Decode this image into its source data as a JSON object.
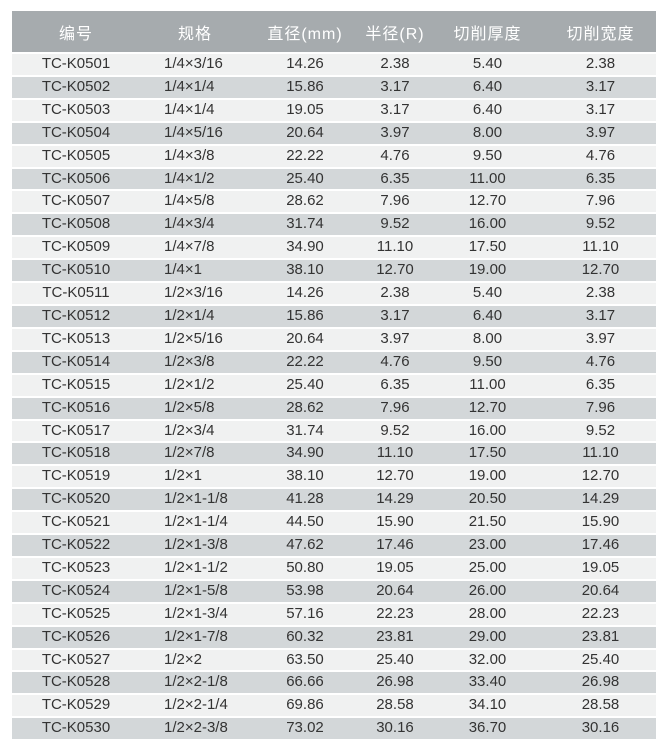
{
  "table": {
    "columns": [
      {
        "id": "code",
        "label": "编号"
      },
      {
        "id": "spec",
        "label": "规格"
      },
      {
        "id": "diameter",
        "label": "直径(mm)"
      },
      {
        "id": "radius",
        "label": "半径(R)"
      },
      {
        "id": "thickness",
        "label": "切削厚度"
      },
      {
        "id": "width",
        "label": "切削宽度"
      }
    ],
    "rows": [
      [
        "TC-K0501",
        "1/4×3/16",
        "14.26",
        "2.38",
        "5.40",
        "2.38"
      ],
      [
        "TC-K0502",
        "1/4×1/4",
        "15.86",
        "3.17",
        "6.40",
        "3.17"
      ],
      [
        "TC-K0503",
        "1/4×1/4",
        "19.05",
        "3.17",
        "6.40",
        "3.17"
      ],
      [
        "TC-K0504",
        "1/4×5/16",
        "20.64",
        "3.97",
        "8.00",
        "3.97"
      ],
      [
        "TC-K0505",
        "1/4×3/8",
        "22.22",
        "4.76",
        "9.50",
        "4.76"
      ],
      [
        "TC-K0506",
        "1/4×1/2",
        "25.40",
        "6.35",
        "11.00",
        "6.35"
      ],
      [
        "TC-K0507",
        "1/4×5/8",
        "28.62",
        "7.96",
        "12.70",
        "7.96"
      ],
      [
        "TC-K0508",
        "1/4×3/4",
        "31.74",
        "9.52",
        "16.00",
        "9.52"
      ],
      [
        "TC-K0509",
        "1/4×7/8",
        "34.90",
        "11.10",
        "17.50",
        "11.10"
      ],
      [
        "TC-K0510",
        "1/4×1",
        "38.10",
        "12.70",
        "19.00",
        "12.70"
      ],
      [
        "TC-K0511",
        "1/2×3/16",
        "14.26",
        "2.38",
        "5.40",
        "2.38"
      ],
      [
        "TC-K0512",
        "1/2×1/4",
        "15.86",
        "3.17",
        "6.40",
        "3.17"
      ],
      [
        "TC-K0513",
        "1/2×5/16",
        "20.64",
        "3.97",
        "8.00",
        "3.97"
      ],
      [
        "TC-K0514",
        "1/2×3/8",
        "22.22",
        "4.76",
        "9.50",
        "4.76"
      ],
      [
        "TC-K0515",
        "1/2×1/2",
        "25.40",
        "6.35",
        "11.00",
        "6.35"
      ],
      [
        "TC-K0516",
        "1/2×5/8",
        "28.62",
        "7.96",
        "12.70",
        "7.96"
      ],
      [
        "TC-K0517",
        "1/2×3/4",
        "31.74",
        "9.52",
        "16.00",
        "9.52"
      ],
      [
        "TC-K0518",
        "1/2×7/8",
        "34.90",
        "11.10",
        "17.50",
        "11.10"
      ],
      [
        "TC-K0519",
        "1/2×1",
        "38.10",
        "12.70",
        "19.00",
        "12.70"
      ],
      [
        "TC-K0520",
        "1/2×1-1/8",
        "41.28",
        "14.29",
        "20.50",
        "14.29"
      ],
      [
        "TC-K0521",
        "1/2×1-1/4",
        "44.50",
        "15.90",
        "21.50",
        "15.90"
      ],
      [
        "TC-K0522",
        "1/2×1-3/8",
        "47.62",
        "17.46",
        "23.00",
        "17.46"
      ],
      [
        "TC-K0523",
        "1/2×1-1/2",
        "50.80",
        "19.05",
        "25.00",
        "19.05"
      ],
      [
        "TC-K0524",
        "1/2×1-5/8",
        "53.98",
        "20.64",
        "26.00",
        "20.64"
      ],
      [
        "TC-K0525",
        "1/2×1-3/4",
        "57.16",
        "22.23",
        "28.00",
        "22.23"
      ],
      [
        "TC-K0526",
        "1/2×1-7/8",
        "60.32",
        "23.81",
        "29.00",
        "23.81"
      ],
      [
        "TC-K0527",
        "1/2×2",
        "63.50",
        "25.40",
        "32.00",
        "25.40"
      ],
      [
        "TC-K0528",
        "1/2×2-1/8",
        "66.66",
        "26.98",
        "33.40",
        "26.98"
      ],
      [
        "TC-K0529",
        "1/2×2-1/4",
        "69.86",
        "28.58",
        "34.10",
        "28.58"
      ],
      [
        "TC-K0530",
        "1/2×2-3/8",
        "73.02",
        "30.16",
        "36.70",
        "30.16"
      ]
    ]
  },
  "colors": {
    "header_bg": "#a6abae",
    "header_text": "#ffffff",
    "row_odd_bg": "#f0f1f1",
    "row_even_bg": "#d3d7d9",
    "row_separator": "#ffffff",
    "body_text": "#333333"
  }
}
